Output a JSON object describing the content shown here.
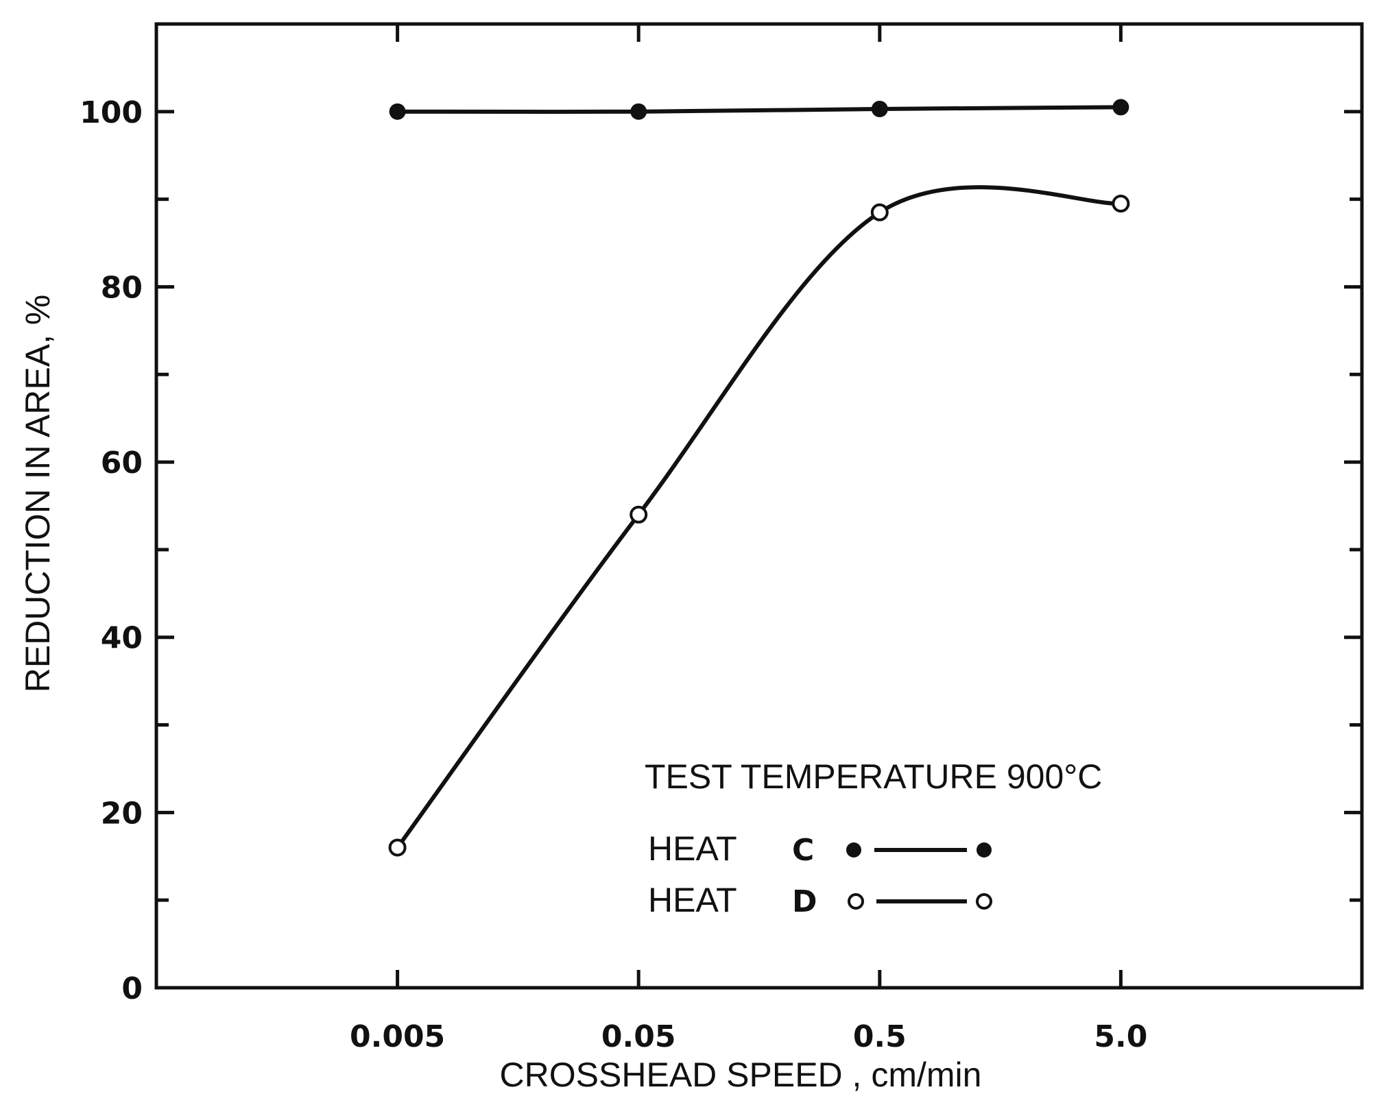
{
  "chart_data": {
    "type": "line",
    "xlabel": "CROSSHEAD SPEED , cm/min",
    "ylabel": "REDUCTION IN AREA, %",
    "x_scale": "log",
    "x_categories": [
      "0.005",
      "0.05",
      "0.5",
      "5.0"
    ],
    "x": [
      0.005,
      0.05,
      0.5,
      5.0
    ],
    "xlim": [
      0.0005,
      50
    ],
    "ylim": [
      0,
      110
    ],
    "y_tick_labels": [
      "0",
      "20",
      "40",
      "60",
      "80",
      "100"
    ],
    "y_ticks": [
      0,
      20,
      40,
      60,
      80,
      100
    ],
    "y_minor_ticks": [
      10,
      30,
      50,
      70,
      90
    ],
    "grid": false,
    "series": [
      {
        "name": "C",
        "marker": "filled-circle",
        "values": [
          100,
          100,
          100.3,
          100.5
        ]
      },
      {
        "name": "D",
        "marker": "open-circle",
        "values": [
          16,
          54,
          88.5,
          89.5
        ]
      }
    ],
    "legend": {
      "title": "TEST TEMPERATURE 900°C",
      "prefix": "HEAT",
      "placement": "bottom-right"
    }
  }
}
